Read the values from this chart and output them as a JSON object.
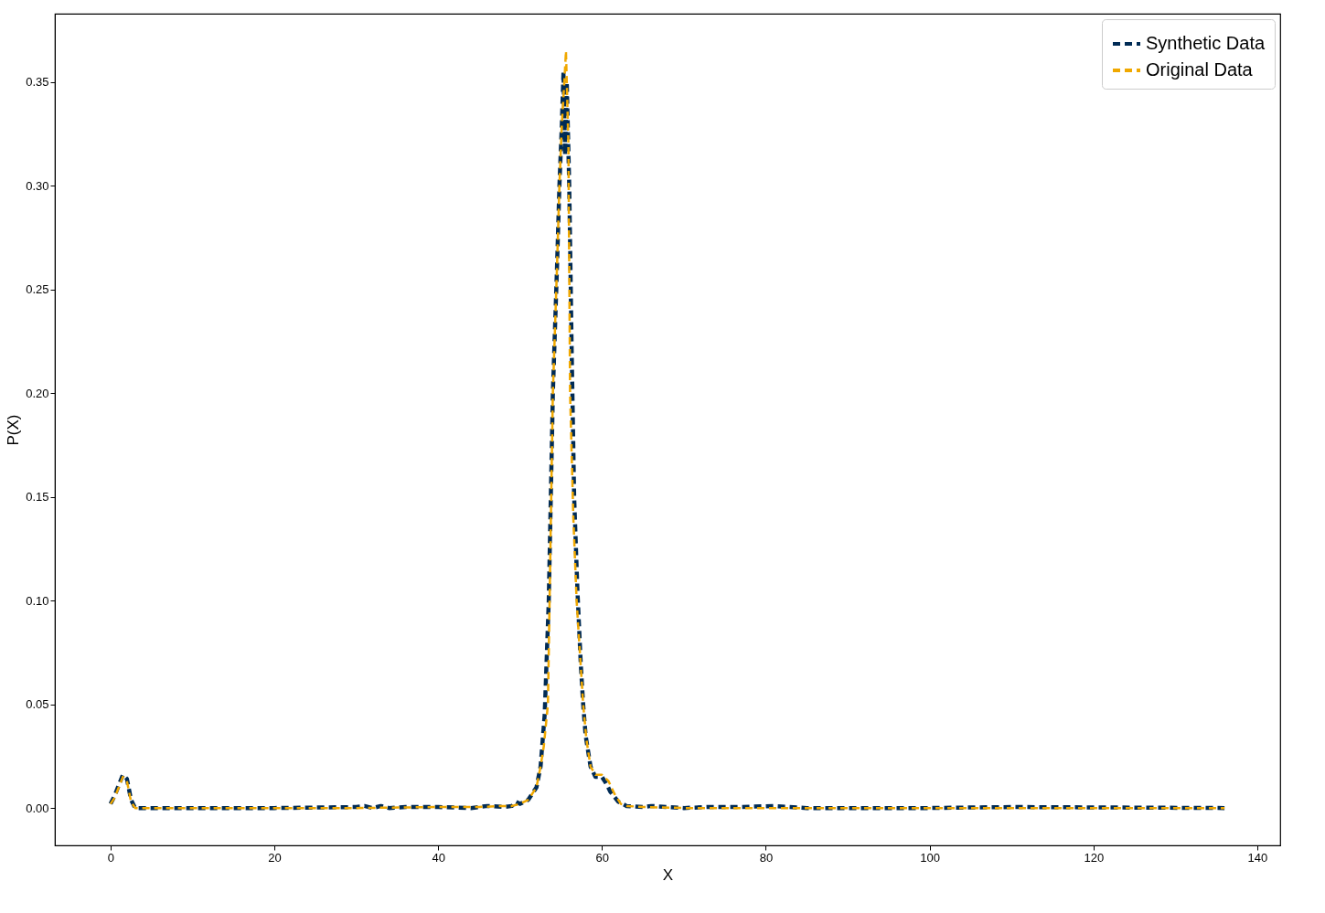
{
  "chart_data": {
    "type": "line",
    "xlabel": "X",
    "ylabel": "P(X)",
    "xlim": [
      -6.8,
      142.8
    ],
    "xticks": [
      0,
      20,
      40,
      60,
      80,
      100,
      120,
      140
    ],
    "ylim": [
      -0.018,
      0.383
    ],
    "yticks": [
      {
        "value": 0,
        "label": "0.00"
      },
      0.05,
      {
        "value": 0.1,
        "label": "0.10"
      },
      0.15,
      {
        "value": 0.2,
        "label": "0.20"
      },
      0.25,
      {
        "value": 0.3,
        "label": "0.30"
      },
      0.35
    ],
    "grid": false,
    "legend": "top right",
    "line_style": "dashed",
    "marker": "none",
    "series": [
      {
        "name": "Synthetic Data",
        "color": "#002b55",
        "x": [
          0,
          0.5,
          1,
          1.5,
          2,
          2.5,
          3,
          10,
          20,
          30,
          31,
          32,
          33,
          34,
          36,
          40,
          44,
          46,
          48,
          49,
          49.5,
          50,
          51,
          52,
          52.5,
          53,
          53.5,
          54,
          54.5,
          54.8,
          55.1,
          55.3,
          55.5,
          55.7,
          56,
          56.3,
          56.6,
          57,
          57.4,
          57.7,
          58,
          58.6,
          59.2,
          60,
          60.5,
          61,
          62,
          63,
          65,
          66,
          70,
          73,
          77,
          81,
          85,
          100,
          110,
          136
        ],
        "values": [
          0.002,
          0.006,
          0.011,
          0.016,
          0.014,
          0.004,
          0.0,
          0.0,
          0.0,
          0.0005,
          0.001,
          0.0,
          0.001,
          0.0,
          0.0005,
          0.0005,
          0.0,
          0.001,
          0.0005,
          0.001,
          0.003,
          0.002,
          0.004,
          0.01,
          0.02,
          0.045,
          0.1,
          0.2,
          0.26,
          0.3,
          0.33,
          0.355,
          0.315,
          0.35,
          0.3,
          0.22,
          0.15,
          0.105,
          0.07,
          0.05,
          0.035,
          0.02,
          0.015,
          0.015,
          0.012,
          0.008,
          0.003,
          0.001,
          0.0005,
          0.001,
          0.0,
          0.0005,
          0.0005,
          0.001,
          0.0,
          0.0,
          0.0005,
          0.0
        ]
      },
      {
        "name": "Original Data",
        "color": "#f0a800",
        "x": [
          0,
          0.5,
          1,
          1.5,
          2,
          2.5,
          3,
          10,
          20,
          30,
          40,
          45,
          48,
          49,
          50,
          51,
          52,
          52.5,
          52.9,
          53.4,
          53.6,
          54,
          54.5,
          54.8,
          55.1,
          55.4,
          55.6,
          55.9,
          56.1,
          56.5,
          56.9,
          57.3,
          57.7,
          58.1,
          58.6,
          59.2,
          60,
          60.8,
          61.5,
          62.3,
          63,
          65,
          70,
          136
        ],
        "values": [
          0.002,
          0.005,
          0.01,
          0.015,
          0.013,
          0.003,
          0.0,
          0.0,
          0.0,
          0.0,
          0.0005,
          0.0005,
          0.001,
          0.001,
          0.002,
          0.004,
          0.01,
          0.02,
          0.03,
          0.05,
          0.1,
          0.2,
          0.26,
          0.3,
          0.33,
          0.35,
          0.365,
          0.32,
          0.2,
          0.14,
          0.1,
          0.075,
          0.05,
          0.033,
          0.02,
          0.016,
          0.016,
          0.013,
          0.007,
          0.002,
          0.001,
          0.0005,
          0.0,
          0.0
        ]
      }
    ]
  }
}
